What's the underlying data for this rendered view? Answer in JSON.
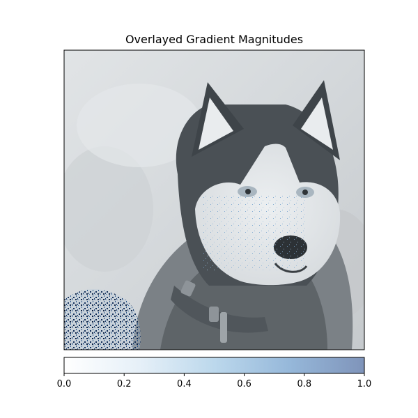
{
  "title": "Overlayed Gradient Magnitudes",
  "image": {
    "subject": "husky-dog-photo",
    "background_color": "#c9cdd0"
  },
  "colorbar": {
    "min": 0.0,
    "max": 1.0,
    "ticks": [
      "0.0",
      "0.2",
      "0.4",
      "0.6",
      "0.8",
      "1.0"
    ],
    "colors": [
      "#ffffff",
      "#dbe9f5",
      "#aed0e8",
      "#8db3d6",
      "#7f97bd"
    ]
  }
}
